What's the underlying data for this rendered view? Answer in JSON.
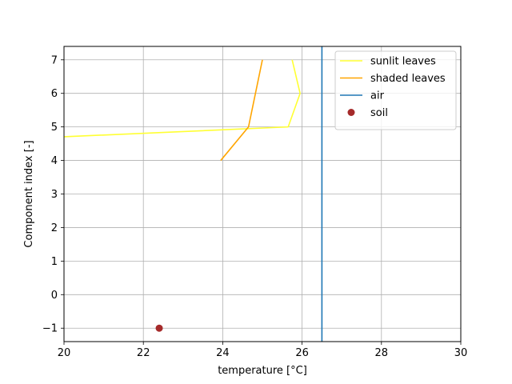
{
  "chart_data": {
    "type": "line",
    "xlabel": "temperature [°C]",
    "ylabel": "Component index [-]",
    "xlim": [
      20,
      30
    ],
    "ylim": [
      -1.4,
      7.4
    ],
    "xticks": [
      20,
      22,
      24,
      26,
      28,
      30
    ],
    "yticks": [
      -1,
      0,
      1,
      2,
      3,
      4,
      5,
      6,
      7
    ],
    "grid": true,
    "legend_position": "top-right",
    "series": [
      {
        "name": "sunlit leaves",
        "kind": "line",
        "color": "#ffff33",
        "x": [
          19.5,
          25.65,
          25.95,
          25.75
        ],
        "y": [
          4.68,
          5.0,
          6.0,
          7.0
        ]
      },
      {
        "name": "shaded leaves",
        "kind": "line",
        "color": "#ffa500",
        "x": [
          23.95,
          24.65,
          25.0
        ],
        "y": [
          4.0,
          5.0,
          7.0
        ]
      },
      {
        "name": "air",
        "kind": "vline",
        "color": "#1f77b4",
        "x": 26.5
      },
      {
        "name": "soil",
        "kind": "scatter",
        "color": "#a52a2a",
        "x": [
          22.4
        ],
        "y": [
          -1.0
        ]
      }
    ]
  }
}
